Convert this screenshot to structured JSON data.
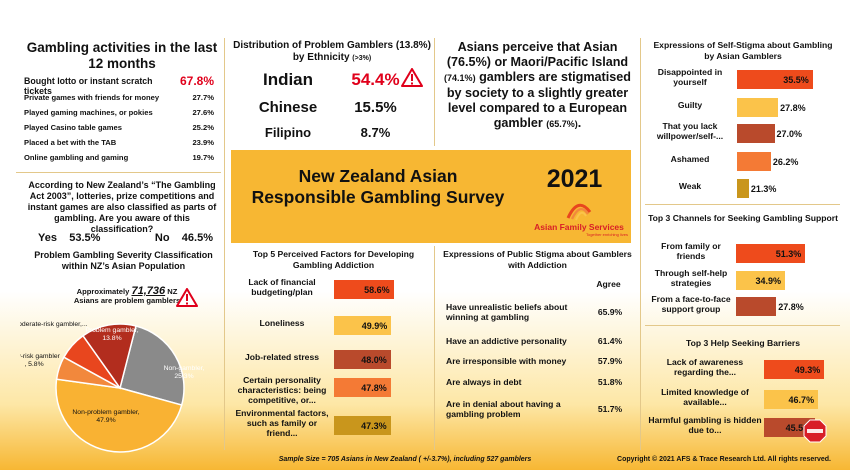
{
  "activities": {
    "title": "Gambling activities in the last 12 months",
    "items": [
      {
        "label": "Bought lotto or instant scratch tickets",
        "value": "67.8%"
      },
      {
        "label": "Private games with friends for money",
        "value": "27.7%"
      },
      {
        "label": "Played gaming machines, or pokies",
        "value": "27.6%"
      },
      {
        "label": "Played Casino table games",
        "value": "25.2%"
      },
      {
        "label": "Placed a bet with the TAB",
        "value": "23.9%"
      },
      {
        "label": "Online gambling and gaming",
        "value": "19.7%"
      }
    ]
  },
  "gambling_act": {
    "question": "According to New Zealand’s “The Gambling Act 2003”, lotteries, prize competitions and instant games are also classified as parts of gambling. Are you aware of this classification?",
    "yes_label": "Yes",
    "yes_value": "53.5%",
    "no_label": "No",
    "no_value": "46.5%"
  },
  "severity": {
    "title": "Problem Gambling Severity Classification within NZ’s Asian Population",
    "approx_prefix": "Approximately",
    "approx_number": "71,736",
    "approx_suffix": "NZ",
    "approx_line2": "Asians are problem gamblers"
  },
  "ethnicity": {
    "title": "Distribution of Problem Gamblers (13.8%) by Ethnicity",
    "title_note": "(>3%)",
    "rows": [
      {
        "name": "Indian",
        "value": "54.4%"
      },
      {
        "name": "Chinese",
        "value": "15.5%"
      },
      {
        "name": "Filipino",
        "value": "8.7%"
      }
    ]
  },
  "perception": {
    "line1": "Asians perceive that Asian (76.5%) or Maori/Pacific Island",
    "pct1": "(74.1%)",
    "line2": "gamblers are stigmatised by society to a slightly greater level compared to a European gambler",
    "pct2": "(65.7%)",
    "end": "."
  },
  "banner": {
    "title": "New Zealand Asian Responsible Gambling Survey",
    "year": "2021",
    "org": "Asian Family Services",
    "org_tagline": "Together enriching lives"
  },
  "public_stigma": {
    "title": "Expressions of Public Stigma about Gamblers with Addiction",
    "column": "Agree",
    "rows": [
      {
        "label": "Have unrealistic beliefs about winning at gambling",
        "value": "65.9%"
      },
      {
        "label": "Have an addictive personality",
        "value": "61.4%"
      },
      {
        "label": "Are irresponsible with money",
        "value": "57.9%"
      },
      {
        "label": "Are always in debt",
        "value": "51.8%"
      },
      {
        "label": "Are in denial about having a gambling problem",
        "value": "51.7%"
      }
    ]
  },
  "colors": {
    "accent_red": "#e0001b",
    "banner": "#f7b733",
    "bar_red": "#ee4b1c",
    "bar_yellow": "#fbc34a",
    "bar_brown": "#b94a2c",
    "bar_orange": "#f47a35",
    "bar_olive": "#c9961c",
    "pie_grey": "#8a8a8a",
    "pie_gold": "#f9b233",
    "pie_orange": "#f2883c",
    "pie_red": "#e8461e",
    "pie_darkred": "#b22d1e"
  },
  "icons": {
    "warning": "warning-icon",
    "stop": "stop-sign-icon"
  },
  "chart_data": [
    {
      "type": "pie",
      "title": "Problem Gambling Severity Classification within NZ’s Asian Population",
      "slices": [
        {
          "name": "Non-gambler",
          "label": "Non-gambler,",
          "label_value": "25.3%",
          "value": 25.3,
          "color": "#8a8a8a"
        },
        {
          "name": "Non-problem gambler",
          "label": "Non-problem gambler,",
          "label_value": "47.9%",
          "value": 47.9,
          "color": "#f9b233"
        },
        {
          "name": "Low-risk gambler",
          "label": "Low-risk gambler",
          "label_value": ", 5.8%",
          "value": 5.8,
          "color": "#f2883c"
        },
        {
          "name": "Moderate-risk gambler",
          "label": "Moderate-risk gambler,...",
          "label_value": "",
          "value": 7.2,
          "color": "#e8461e"
        },
        {
          "name": "Problem gambler",
          "label": "Problem gambler,",
          "label_value": "13.8%",
          "value": 13.8,
          "color": "#b22d1e"
        }
      ]
    },
    {
      "type": "bar",
      "title": "Top 5 Perceived Factors for Developing Gambling Addiction",
      "categories": [
        "Lack of financial budgeting/plan",
        "Loneliness",
        "Job-related stress",
        "Certain personality characteristics: being competitive, or...",
        "Environmental factors, such as family or friend..."
      ],
      "values": [
        58.6,
        49.9,
        48.0,
        47.8,
        47.3
      ],
      "labels": [
        "58.6%",
        "49.9%",
        "48.0%",
        "47.8%",
        "47.3%"
      ],
      "colors": [
        "#ee4b1c",
        "#fbc34a",
        "#b94a2c",
        "#f47a35",
        "#c9961c"
      ],
      "xlim": [
        0,
        60
      ]
    },
    {
      "type": "bar",
      "title": "Expressions of Self-Stigma about Gambling by Asian Gamblers",
      "categories": [
        "Disappointed in yourself",
        "Guilty",
        "That you lack willpower/self-...",
        "Ashamed",
        "Weak"
      ],
      "values": [
        35.5,
        27.8,
        27.0,
        26.2,
        21.3
      ],
      "labels": [
        "35.5%",
        "27.8%",
        "27.0%",
        "26.2%",
        "21.3%"
      ],
      "colors": [
        "#ee4b1c",
        "#fbc34a",
        "#b94a2c",
        "#f47a35",
        "#c9961c"
      ],
      "xlim": [
        20,
        36
      ]
    },
    {
      "type": "bar",
      "title": "Top 3 Channels for Seeking Gambling Support",
      "categories": [
        "From family or friends",
        "Through self-help strategies",
        "From a face-to-face support group"
      ],
      "values": [
        51.3,
        34.9,
        27.8
      ],
      "labels": [
        "51.3%",
        "34.9%",
        "27.8%"
      ],
      "colors": [
        "#ee4b1c",
        "#fbc34a",
        "#b94a2c"
      ],
      "xlim": [
        0,
        60
      ]
    },
    {
      "type": "bar",
      "title": "Top 3 Help Seeking Barriers",
      "categories": [
        "Lack of awareness regarding the...",
        "Limited knowledge of available...",
        "Harmful gambling is hidden due to..."
      ],
      "values": [
        49.3,
        46.7,
        45.5
      ],
      "labels": [
        "49.3%",
        "46.7%",
        "45.5%"
      ],
      "colors": [
        "#ee4b1c",
        "#fbc34a",
        "#b94a2c"
      ],
      "xlim": [
        40,
        50
      ]
    }
  ],
  "footer": {
    "sample": "Sample Size = 705 Asians in New Zealand ( +/-3.7%), including 527 gamblers",
    "copyright": "Copyright © 2021 AFS & Trace Research Ltd. All rights reserved."
  }
}
